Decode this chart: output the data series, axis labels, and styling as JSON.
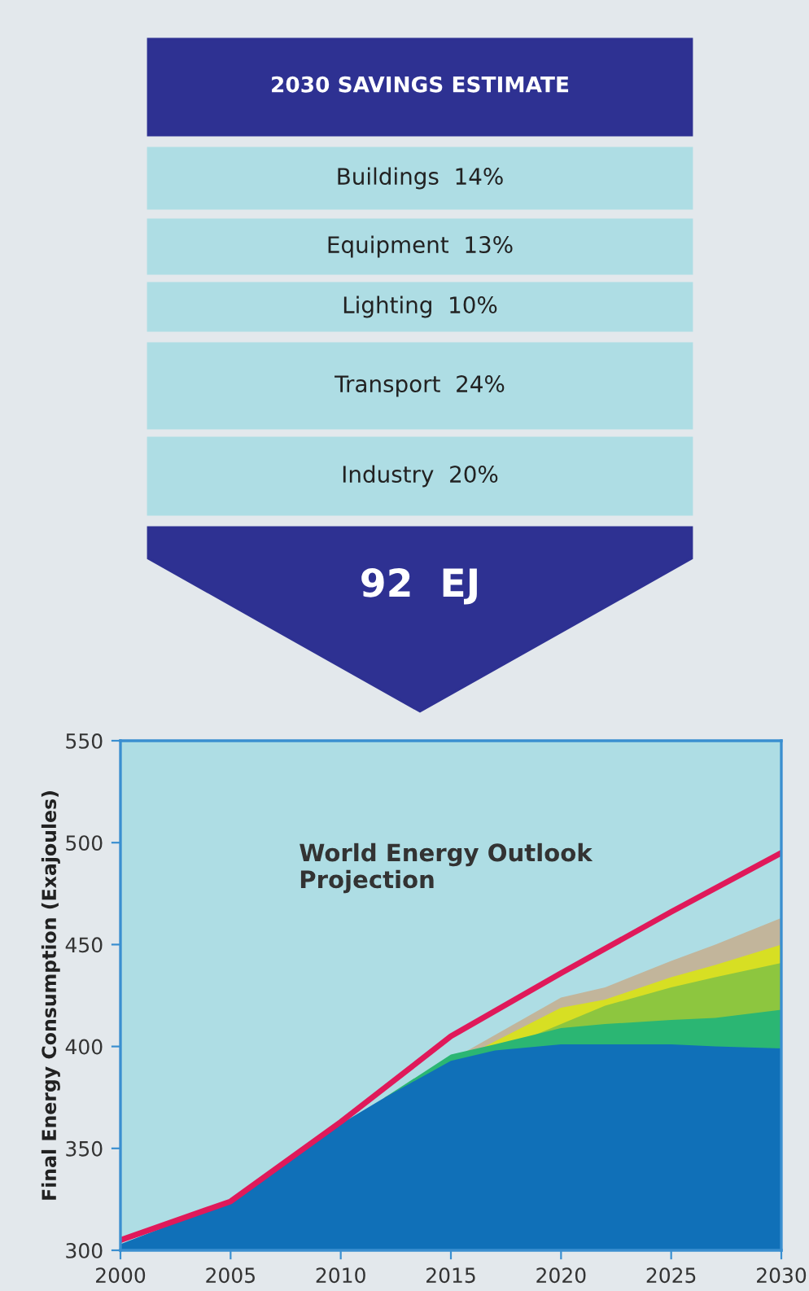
{
  "chart_data": [
    {
      "type": "other",
      "title": "2030 SAVINGS ESTIMATE",
      "annotations": [
        "Buildings  14%",
        "Equipment  13%",
        "Lighting  10%",
        "Transport  24%",
        "Industry  20%",
        "92  EJ"
      ]
    },
    {
      "type": "area",
      "ylabel": "Final Energy Consumption (Exajoules)",
      "annotations": [
        "World Energy Outlook\nProjection"
      ],
      "x": [
        2000,
        2005,
        2010,
        2012,
        2015,
        2017,
        2020,
        2022,
        2025,
        2027,
        2030
      ],
      "series": [
        {
          "color": "#c2b59b",
          "x": [
            2012,
            2020,
            2022,
            2025,
            2027,
            2030
          ],
          "values": [
            375,
            424,
            429,
            442,
            450,
            463
          ]
        },
        {
          "color": "#d7df23",
          "x": [
            2012,
            2020,
            2022,
            2025,
            2027,
            2030
          ],
          "values": [
            375,
            419,
            423,
            434,
            440,
            450
          ]
        },
        {
          "color": "#8dc63f",
          "x": [
            2012,
            2022,
            2025,
            2027,
            2030
          ],
          "values": [
            375,
            420,
            429,
            434,
            441
          ]
        },
        {
          "color": "#2bb673",
          "x": [
            2012,
            2015,
            2017,
            2020,
            2022,
            2025,
            2027,
            2030
          ],
          "values": [
            375,
            396,
            401,
            409,
            411,
            413,
            414,
            418
          ]
        },
        {
          "color": "#1070b8",
          "values": [
            303,
            324,
            362,
            375,
            393,
            398,
            401,
            401,
            401,
            400,
            399
          ]
        },
        {
          "type": "line",
          "color": "#e0195a",
          "x": [
            2000,
            2005,
            2010,
            2015,
            2020,
            2025,
            2030
          ],
          "values": [
            305,
            324,
            363,
            405,
            436,
            466,
            495
          ]
        }
      ],
      "xlim": [
        2000,
        2030
      ],
      "xticks": [
        2000,
        2005,
        2010,
        2015,
        2020,
        2025,
        2030
      ],
      "ylim": [
        300,
        550
      ],
      "yticks": [
        300,
        350,
        400,
        450,
        500,
        550
      ],
      "grid": false,
      "legend": false
    }
  ]
}
